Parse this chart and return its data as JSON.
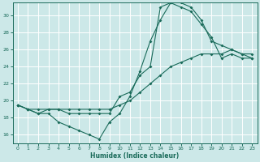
{
  "xlabel": "Humidex (Indice chaleur)",
  "background_color": "#cce8e8",
  "grid_color": "#b0d8d8",
  "line_color": "#1a6b5a",
  "xlim": [
    -0.5,
    23.5
  ],
  "ylim": [
    15.0,
    31.5
  ],
  "xticks": [
    0,
    1,
    2,
    3,
    4,
    5,
    6,
    7,
    8,
    9,
    10,
    11,
    12,
    13,
    14,
    15,
    16,
    17,
    18,
    19,
    20,
    21,
    22,
    23
  ],
  "yticks": [
    16,
    18,
    20,
    22,
    24,
    26,
    28,
    30
  ],
  "curve_a": {
    "x": [
      0,
      1,
      2,
      3,
      4,
      5,
      6,
      7,
      8,
      9,
      10,
      11,
      12,
      13,
      14,
      15,
      16,
      17,
      18,
      19,
      20,
      21,
      22,
      23
    ],
    "y": [
      19.5,
      19.0,
      18.5,
      18.5,
      17.5,
      17.0,
      16.5,
      16.0,
      15.5,
      17.5,
      18.5,
      20.5,
      23.5,
      27.0,
      29.5,
      31.5,
      31.0,
      30.5,
      29.0,
      27.5,
      25.0,
      25.5,
      25.0,
      25.0
    ]
  },
  "curve_b": {
    "x": [
      0,
      1,
      2,
      3,
      4,
      5,
      6,
      7,
      8,
      9,
      10,
      11,
      12,
      13,
      14,
      15,
      16,
      17,
      18,
      19,
      20,
      21,
      22,
      23
    ],
    "y": [
      19.5,
      19.0,
      19.0,
      19.0,
      19.0,
      19.0,
      19.0,
      19.0,
      19.0,
      19.0,
      19.5,
      20.0,
      21.0,
      22.0,
      23.0,
      24.0,
      24.5,
      25.0,
      25.5,
      25.5,
      25.5,
      26.0,
      25.5,
      25.5
    ]
  },
  "curve_c": {
    "x": [
      0,
      1,
      2,
      3,
      4,
      5,
      6,
      7,
      8,
      9,
      10,
      11,
      12,
      13,
      14,
      15,
      16,
      17,
      18,
      19,
      20,
      21,
      22,
      23
    ],
    "y": [
      19.5,
      19.0,
      18.5,
      19.0,
      19.0,
      18.5,
      18.5,
      18.5,
      18.5,
      18.5,
      20.5,
      21.0,
      23.0,
      24.0,
      31.0,
      31.5,
      31.5,
      31.0,
      29.5,
      27.0,
      26.5,
      26.0,
      25.5,
      25.0
    ]
  }
}
